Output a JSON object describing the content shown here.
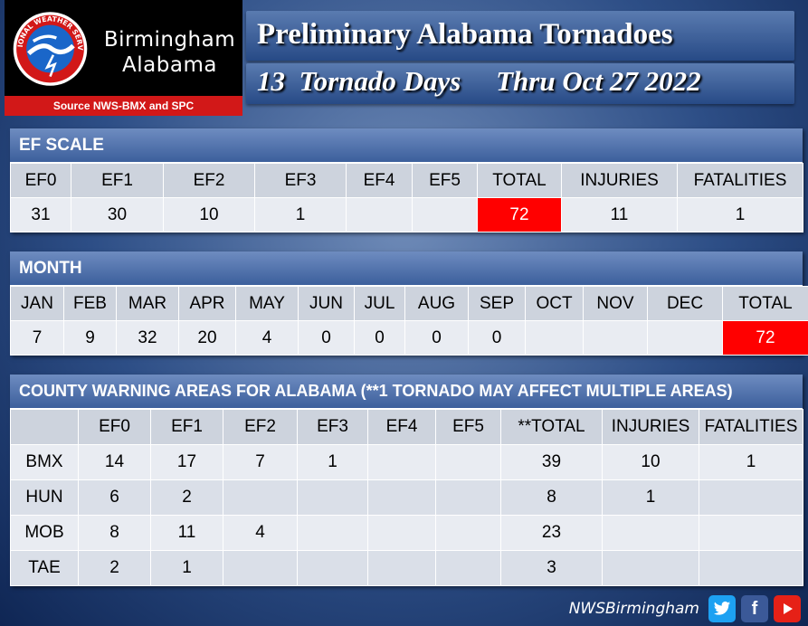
{
  "logo": {
    "seal_text": "NATIONAL WEATHER SERVICE",
    "office_line1": "Birmingham",
    "office_line2": "Alabama",
    "source": "Source NWS-BMX and SPC"
  },
  "title": {
    "line1": "Preliminary Alabama Tornadoes",
    "line2": "13  Tornado Days     Thru Oct 27 2022"
  },
  "ef_scale": {
    "header": "EF SCALE",
    "columns": [
      "EF0",
      "EF1",
      "EF2",
      "EF3",
      "EF4",
      "EF5",
      "TOTAL",
      "INJURIES",
      "FATALITIES"
    ],
    "values": [
      "31",
      "30",
      "10",
      "1",
      "",
      "",
      "72",
      "11",
      "1"
    ]
  },
  "month": {
    "header": "MONTH",
    "columns": [
      "JAN",
      "FEB",
      "MAR",
      "APR",
      "MAY",
      "JUN",
      "JUL",
      "AUG",
      "SEP",
      "OCT",
      "NOV",
      "DEC",
      "TOTAL"
    ],
    "values": [
      "7",
      "9",
      "32",
      "20",
      "4",
      "0",
      "0",
      "0",
      "0",
      "",
      "",
      "",
      "72"
    ]
  },
  "county": {
    "header": "COUNTY WARNING AREAS FOR ALABAMA (**1 TORNADO MAY AFFECT MULTIPLE AREAS)",
    "columns": [
      "",
      "EF0",
      "EF1",
      "EF2",
      "EF3",
      "EF4",
      "EF5",
      "**TOTAL",
      "INJURIES",
      "FATALITIES"
    ],
    "rows": [
      [
        "BMX",
        "14",
        "17",
        "7",
        "1",
        "",
        "",
        "39",
        "10",
        "1"
      ],
      [
        "HUN",
        "6",
        "2",
        "",
        "",
        "",
        "",
        "8",
        "1",
        ""
      ],
      [
        "MOB",
        "8",
        "11",
        "4",
        "",
        "",
        "",
        "23",
        "",
        ""
      ],
      [
        "TAE",
        "2",
        "1",
        "",
        "",
        "",
        "",
        "3",
        "",
        ""
      ]
    ]
  },
  "footer": {
    "handle": "NWSBirmingham",
    "icons": [
      "twitter-icon",
      "facebook-icon",
      "youtube-icon"
    ]
  },
  "colors": {
    "highlight": "#ff0000",
    "header_blue": "#3c5f9c"
  }
}
